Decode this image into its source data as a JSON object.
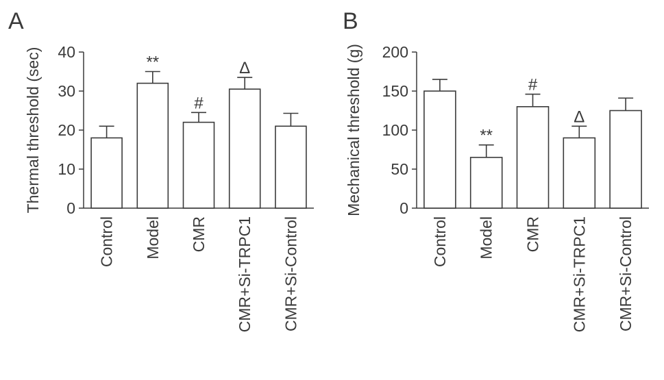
{
  "chart_data": [
    {
      "type": "bar",
      "panel_label": "A",
      "categories": [
        "Control",
        "Model",
        "CMR",
        "CMR+Si-TRPC1",
        "CMR+Si-Control"
      ],
      "values": [
        18,
        32,
        22,
        30.5,
        21
      ],
      "errors": [
        3,
        3,
        2.5,
        3,
        3.3
      ],
      "annotations": [
        "",
        "**",
        "#",
        "Δ",
        ""
      ],
      "ylabel": "Thermal threshold (sec)",
      "xlabel": "",
      "ylim": [
        0,
        40
      ],
      "yticks": [
        0,
        10,
        20,
        30,
        40
      ],
      "grid": false
    },
    {
      "type": "bar",
      "panel_label": "B",
      "categories": [
        "Control",
        "Model",
        "CMR",
        "CMR+Si-TRPC1",
        "CMR+Si-Control"
      ],
      "values": [
        150,
        65,
        130,
        90,
        125
      ],
      "errors": [
        15,
        16,
        16,
        15,
        16
      ],
      "annotations": [
        "",
        "**",
        "#",
        "Δ",
        ""
      ],
      "ylabel": "Mechanical threshold (g)",
      "xlabel": "",
      "ylim": [
        0,
        200
      ],
      "yticks": [
        0,
        50,
        100,
        150,
        200
      ],
      "grid": false
    }
  ],
  "colors": {
    "axis": "#3a3a3a",
    "bar_fill": "#ffffff",
    "bar_stroke": "#3a3a3a"
  }
}
